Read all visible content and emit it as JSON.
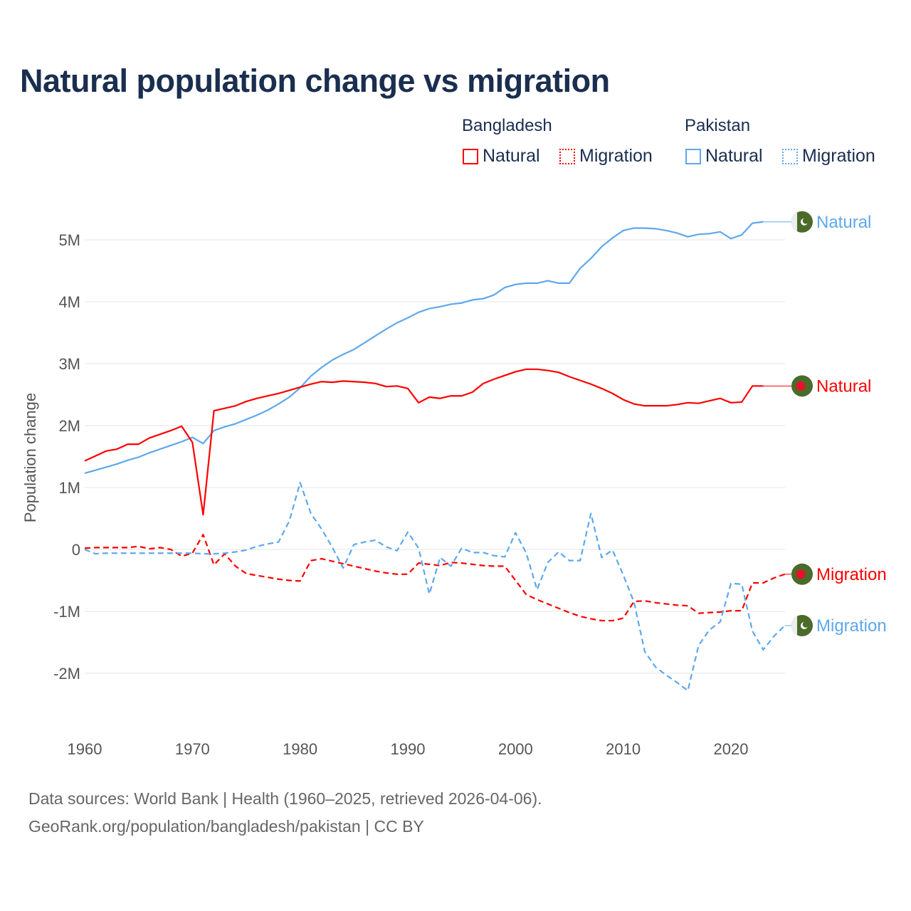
{
  "title": "Natural population change vs migration",
  "legend": {
    "groups": [
      {
        "name": "Bangladesh",
        "color": "#ff0000",
        "items": [
          "Natural",
          "Migration"
        ]
      },
      {
        "name": "Pakistan",
        "color": "#5ea8ec",
        "items": [
          "Natural",
          "Migration"
        ]
      }
    ]
  },
  "footer": {
    "line1": "Data sources: World Bank | Health (1960–2025, retrieved 2026-04-06).",
    "line2": "GeoRank.org/population/bangladesh/pakistan | CC BY"
  },
  "chart_data": {
    "type": "line",
    "title": "Natural population change vs migration",
    "xlabel": "",
    "ylabel": "Population change",
    "xlim": [
      1960,
      2025
    ],
    "ylim": [
      -2.5,
      5.5
    ],
    "x_ticks": [
      1960,
      1970,
      1980,
      1990,
      2000,
      2010,
      2020
    ],
    "y_ticks": [
      {
        "v": 5,
        "label": "5M"
      },
      {
        "v": 4,
        "label": "4M"
      },
      {
        "v": 3,
        "label": "3M"
      },
      {
        "v": 2,
        "label": "2M"
      },
      {
        "v": 1,
        "label": "1M"
      },
      {
        "v": 0,
        "label": "0"
      },
      {
        "v": -1,
        "label": "-1M"
      },
      {
        "v": -2,
        "label": "-2M"
      }
    ],
    "units": "millions",
    "series": [
      {
        "name": "Pakistan Natural",
        "label": "Natural",
        "country": "Pakistan",
        "color": "#5ea8ec",
        "dash": false,
        "start": 1960,
        "values": [
          1.23,
          1.28,
          1.33,
          1.38,
          1.44,
          1.49,
          1.56,
          1.62,
          1.68,
          1.74,
          1.81,
          1.71,
          1.92,
          1.98,
          2.03,
          2.1,
          2.17,
          2.25,
          2.35,
          2.46,
          2.61,
          2.8,
          2.94,
          3.06,
          3.15,
          3.23,
          3.34,
          3.45,
          3.56,
          3.66,
          3.74,
          3.83,
          3.89,
          3.92,
          3.96,
          3.98,
          4.03,
          4.05,
          4.11,
          4.23,
          4.28,
          4.3,
          4.3,
          4.34,
          4.3,
          4.3,
          4.54,
          4.7,
          4.89,
          5.03,
          5.15,
          5.19,
          5.19,
          5.18,
          5.15,
          5.11,
          5.05,
          5.09,
          5.1,
          5.13,
          5.02,
          5.08,
          5.27,
          5.29
        ]
      },
      {
        "name": "Bangladesh Natural",
        "label": "Natural",
        "country": "Bangladesh",
        "color": "#ff0000",
        "dash": false,
        "start": 1960,
        "values": [
          1.43,
          1.51,
          1.59,
          1.62,
          1.7,
          1.7,
          1.8,
          1.86,
          1.92,
          1.99,
          1.73,
          0.56,
          2.24,
          2.28,
          2.32,
          2.39,
          2.44,
          2.48,
          2.52,
          2.57,
          2.62,
          2.67,
          2.71,
          2.7,
          2.72,
          2.71,
          2.7,
          2.68,
          2.63,
          2.64,
          2.6,
          2.37,
          2.46,
          2.44,
          2.48,
          2.48,
          2.54,
          2.68,
          2.75,
          2.81,
          2.87,
          2.91,
          2.91,
          2.89,
          2.86,
          2.79,
          2.73,
          2.67,
          2.6,
          2.52,
          2.42,
          2.35,
          2.32,
          2.32,
          2.32,
          2.34,
          2.37,
          2.36,
          2.4,
          2.44,
          2.37,
          2.38,
          2.64,
          2.64
        ]
      },
      {
        "name": "Bangladesh Migration",
        "label": "Migration",
        "country": "Bangladesh",
        "color": "#ff0000",
        "dash": true,
        "start": 1960,
        "values": [
          0.02,
          0.03,
          0.03,
          0.03,
          0.03,
          0.05,
          0.01,
          0.03,
          0.0,
          -0.11,
          -0.06,
          0.24,
          -0.25,
          -0.07,
          -0.27,
          -0.39,
          -0.42,
          -0.45,
          -0.48,
          -0.5,
          -0.51,
          -0.18,
          -0.15,
          -0.19,
          -0.23,
          -0.27,
          -0.31,
          -0.35,
          -0.38,
          -0.4,
          -0.4,
          -0.22,
          -0.24,
          -0.26,
          -0.21,
          -0.22,
          -0.24,
          -0.26,
          -0.27,
          -0.27,
          -0.5,
          -0.73,
          -0.81,
          -0.88,
          -0.95,
          -1.02,
          -1.08,
          -1.12,
          -1.15,
          -1.15,
          -1.11,
          -0.84,
          -0.83,
          -0.86,
          -0.88,
          -0.9,
          -0.91,
          -1.03,
          -1.02,
          -1.01,
          -0.99,
          -0.99,
          -0.54,
          -0.54,
          -0.46,
          -0.4
        ]
      },
      {
        "name": "Pakistan Migration",
        "label": "Migration",
        "country": "Pakistan",
        "color": "#5ea8ec",
        "dash": true,
        "start": 1960,
        "values": [
          0.0,
          -0.07,
          -0.06,
          -0.06,
          -0.06,
          -0.06,
          -0.06,
          -0.06,
          -0.06,
          -0.06,
          -0.06,
          -0.07,
          -0.07,
          -0.06,
          -0.04,
          -0.01,
          0.05,
          0.09,
          0.12,
          0.46,
          1.08,
          0.58,
          0.33,
          0.03,
          -0.3,
          0.08,
          0.12,
          0.15,
          0.04,
          -0.02,
          0.28,
          0.02,
          -0.72,
          -0.13,
          -0.27,
          0.02,
          -0.05,
          -0.05,
          -0.1,
          -0.12,
          0.27,
          -0.06,
          -0.65,
          -0.21,
          -0.04,
          -0.18,
          -0.18,
          0.58,
          -0.13,
          -0.01,
          -0.41,
          -0.85,
          -1.65,
          -1.9,
          -2.03,
          -2.15,
          -2.28,
          -1.55,
          -1.3,
          -1.17,
          -0.55,
          -0.56,
          -1.32,
          -1.62,
          -1.4,
          -1.23
        ]
      }
    ]
  }
}
